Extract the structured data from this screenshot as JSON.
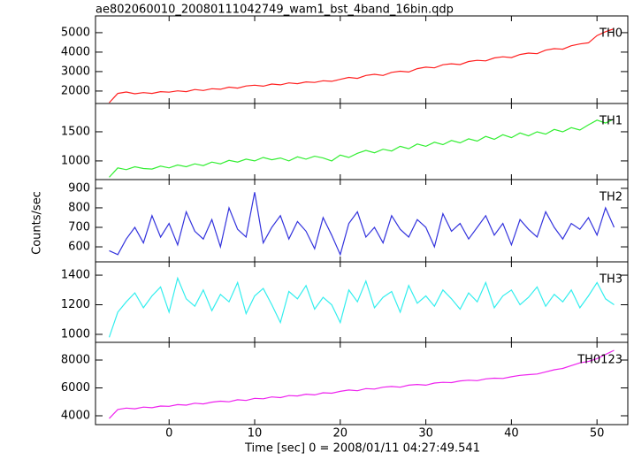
{
  "chart_data": [
    {
      "type": "line",
      "title": "ae802060010_20080111042749_wam1_bst_4band_16bin.qdp",
      "x": [
        -7,
        -6,
        -5,
        -4,
        -3,
        -2,
        -1,
        0,
        1,
        2,
        3,
        4,
        5,
        6,
        7,
        8,
        9,
        10,
        11,
        12,
        13,
        14,
        15,
        16,
        17,
        18,
        19,
        20,
        21,
        22,
        23,
        24,
        25,
        26,
        27,
        28,
        29,
        30,
        31,
        32,
        33,
        34,
        35,
        36,
        37,
        38,
        39,
        40,
        41,
        42,
        43,
        44,
        45,
        46,
        47,
        48,
        49,
        50,
        51,
        52
      ],
      "series": [
        {
          "name": "TH0",
          "color": "#ff2020",
          "values": [
            1400,
            1880,
            1950,
            1860,
            1920,
            1880,
            1970,
            1940,
            2010,
            1970,
            2080,
            2030,
            2120,
            2090,
            2200,
            2150,
            2260,
            2300,
            2250,
            2360,
            2320,
            2420,
            2380,
            2470,
            2440,
            2530,
            2500,
            2600,
            2700,
            2650,
            2800,
            2860,
            2800,
            2960,
            3020,
            2980,
            3150,
            3230,
            3190,
            3350,
            3400,
            3360,
            3520,
            3580,
            3550,
            3700,
            3760,
            3720,
            3880,
            3950,
            3920,
            4100,
            4180,
            4150,
            4330,
            4420,
            4480,
            4850,
            5050,
            5200
          ]
        }
      ],
      "xlim": [
        -8.6,
        53.6
      ],
      "ylim": [
        1360,
        5860
      ],
      "yticks": [
        2000,
        3000,
        4000,
        5000
      ]
    },
    {
      "type": "line",
      "x": [
        -7,
        -6,
        -5,
        -4,
        -3,
        -2,
        -1,
        0,
        1,
        2,
        3,
        4,
        5,
        6,
        7,
        8,
        9,
        10,
        11,
        12,
        13,
        14,
        15,
        16,
        17,
        18,
        19,
        20,
        21,
        22,
        23,
        24,
        25,
        26,
        27,
        28,
        29,
        30,
        31,
        32,
        33,
        34,
        35,
        36,
        37,
        38,
        39,
        40,
        41,
        42,
        43,
        44,
        45,
        46,
        47,
        48,
        49,
        50,
        51,
        52
      ],
      "series": [
        {
          "name": "TH1",
          "color": "#33ee33",
          "values": [
            720,
            880,
            850,
            900,
            870,
            860,
            910,
            880,
            930,
            900,
            950,
            920,
            980,
            950,
            1010,
            980,
            1030,
            1000,
            1060,
            1020,
            1050,
            1000,
            1070,
            1030,
            1080,
            1050,
            1000,
            1100,
            1060,
            1130,
            1180,
            1140,
            1200,
            1170,
            1250,
            1210,
            1290,
            1250,
            1320,
            1280,
            1350,
            1310,
            1380,
            1340,
            1420,
            1370,
            1450,
            1400,
            1480,
            1430,
            1500,
            1460,
            1540,
            1500,
            1570,
            1530,
            1620,
            1700,
            1650,
            1720
          ]
        }
      ],
      "xlim": [
        -8.6,
        53.6
      ],
      "ylim": [
        680,
        1985
      ],
      "yticks": [
        1000,
        1500
      ]
    },
    {
      "type": "line",
      "y_label": "Counts/sec",
      "x": [
        -7,
        -6,
        -5,
        -4,
        -3,
        -2,
        -1,
        0,
        1,
        2,
        3,
        4,
        5,
        6,
        7,
        8,
        9,
        10,
        11,
        12,
        13,
        14,
        15,
        16,
        17,
        18,
        19,
        20,
        21,
        22,
        23,
        24,
        25,
        26,
        27,
        28,
        29,
        30,
        31,
        32,
        33,
        34,
        35,
        36,
        37,
        38,
        39,
        40,
        41,
        42,
        43,
        44,
        45,
        46,
        47,
        48,
        49,
        50,
        51,
        52
      ],
      "series": [
        {
          "name": "TH2",
          "color": "#3333dd",
          "values": [
            580,
            560,
            640,
            700,
            620,
            760,
            650,
            720,
            610,
            780,
            680,
            640,
            740,
            600,
            800,
            690,
            650,
            880,
            620,
            700,
            760,
            640,
            730,
            680,
            590,
            750,
            660,
            560,
            720,
            780,
            650,
            700,
            620,
            760,
            690,
            650,
            740,
            700,
            600,
            770,
            680,
            720,
            640,
            700,
            760,
            660,
            720,
            610,
            740,
            690,
            650,
            780,
            700,
            640,
            720,
            690,
            750,
            660,
            800,
            700
          ]
        }
      ],
      "xlim": [
        -8.6,
        53.6
      ],
      "ylim": [
        523,
        945
      ],
      "yticks": [
        600,
        700,
        800,
        900
      ]
    },
    {
      "type": "line",
      "x": [
        -7,
        -6,
        -5,
        -4,
        -3,
        -2,
        -1,
        0,
        1,
        2,
        3,
        4,
        5,
        6,
        7,
        8,
        9,
        10,
        11,
        12,
        13,
        14,
        15,
        16,
        17,
        18,
        19,
        20,
        21,
        22,
        23,
        24,
        25,
        26,
        27,
        28,
        29,
        30,
        31,
        32,
        33,
        34,
        35,
        36,
        37,
        38,
        39,
        40,
        41,
        42,
        43,
        44,
        45,
        46,
        47,
        48,
        49,
        50,
        51,
        52
      ],
      "series": [
        {
          "name": "TH3",
          "color": "#33eeee",
          "values": [
            980,
            1150,
            1220,
            1280,
            1180,
            1260,
            1320,
            1150,
            1380,
            1240,
            1190,
            1300,
            1160,
            1270,
            1220,
            1350,
            1140,
            1260,
            1310,
            1200,
            1080,
            1290,
            1240,
            1330,
            1170,
            1250,
            1200,
            1080,
            1300,
            1220,
            1360,
            1180,
            1250,
            1290,
            1150,
            1330,
            1210,
            1260,
            1190,
            1300,
            1240,
            1170,
            1280,
            1220,
            1350,
            1180,
            1260,
            1300,
            1200,
            1250,
            1320,
            1190,
            1270,
            1220,
            1300,
            1180,
            1260,
            1350,
            1240,
            1200
          ]
        }
      ],
      "xlim": [
        -8.6,
        53.6
      ],
      "ylim": [
        946,
        1490
      ],
      "yticks": [
        1000,
        1200,
        1400
      ]
    },
    {
      "type": "line",
      "x_label": "Time [sec] 0 = 2008/01/11 04:27:49.541",
      "x": [
        -7,
        -6,
        -5,
        -4,
        -3,
        -2,
        -1,
        0,
        1,
        2,
        3,
        4,
        5,
        6,
        7,
        8,
        9,
        10,
        11,
        12,
        13,
        14,
        15,
        16,
        17,
        18,
        19,
        20,
        21,
        22,
        23,
        24,
        25,
        26,
        27,
        28,
        29,
        30,
        31,
        32,
        33,
        34,
        35,
        36,
        37,
        38,
        39,
        40,
        41,
        42,
        43,
        44,
        45,
        46,
        47,
        48,
        49,
        50,
        51,
        52
      ],
      "series": [
        {
          "name": "TH0123",
          "color": "#ee22ee",
          "values": [
            3800,
            4450,
            4550,
            4500,
            4620,
            4580,
            4700,
            4680,
            4800,
            4760,
            4900,
            4850,
            4980,
            5050,
            5000,
            5150,
            5100,
            5250,
            5220,
            5350,
            5300,
            5450,
            5420,
            5550,
            5500,
            5650,
            5620,
            5750,
            5850,
            5800,
            5950,
            5920,
            6050,
            6100,
            6050,
            6200,
            6250,
            6200,
            6350,
            6400,
            6380,
            6500,
            6550,
            6520,
            6650,
            6700,
            6680,
            6800,
            6900,
            6950,
            7000,
            7150,
            7300,
            7400,
            7600,
            7800,
            7900,
            8100,
            8400,
            8700
          ]
        }
      ],
      "xlim": [
        -8.6,
        53.6
      ],
      "ylim": [
        3365,
        9270
      ],
      "yticks": [
        4000,
        6000,
        8000
      ],
      "xticks": [
        0,
        10,
        20,
        30,
        40,
        50
      ]
    }
  ]
}
